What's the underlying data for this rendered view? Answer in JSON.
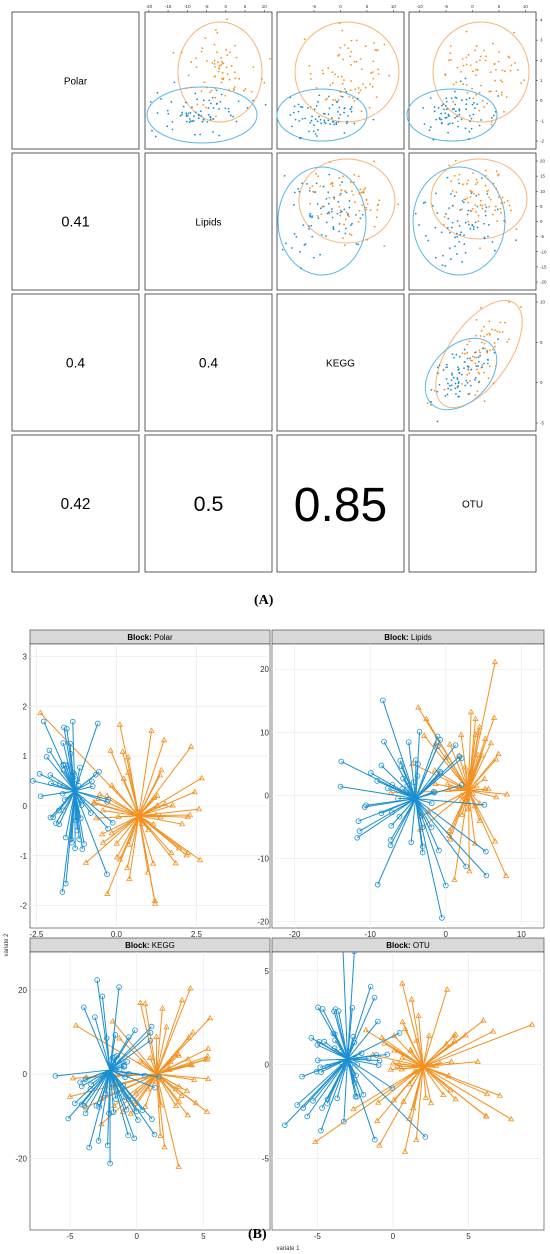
{
  "figure": {
    "label_a": "(A)",
    "label_b": "(B)"
  },
  "colors": {
    "group1": "#1a8fd1",
    "group2": "#f39121",
    "ellipse1": "#59b6e6",
    "ellipse2": "#f6b577",
    "strip_fill": "#d9d9d9",
    "grid": "#ebebeb"
  },
  "chart_data": [
    {
      "type": "scatter",
      "kind": "pairs-matrix",
      "blocks": [
        "Polar",
        "Lipids",
        "KEGG",
        "OTU"
      ],
      "correlations": [
        {
          "row": "Lipids",
          "col": "Polar",
          "value": "0.41"
        },
        {
          "row": "KEGG",
          "col": "Polar",
          "value": "0.4"
        },
        {
          "row": "KEGG",
          "col": "Lipids",
          "value": "0.4"
        },
        {
          "row": "OTU",
          "col": "Polar",
          "value": "0.42"
        },
        {
          "row": "OTU",
          "col": "Lipids",
          "value": "0.5"
        },
        {
          "row": "OTU",
          "col": "KEGG",
          "value": "0.85"
        }
      ],
      "top_axis_ticks": [
        [
          "-20",
          "-15",
          "-10",
          "-5",
          "0",
          "5",
          "10"
        ],
        [
          "-5",
          "0",
          "5",
          "10"
        ],
        [
          "-10",
          "-5",
          "0",
          "5",
          "10"
        ]
      ],
      "right_axis_ticks": [
        [
          "4",
          "3",
          "2",
          "1",
          "0",
          "-1",
          "-2"
        ],
        [
          "20",
          "15",
          "10",
          "5",
          "0",
          "-5",
          "-10",
          "-15",
          "-20"
        ],
        [
          "10",
          "5",
          "0",
          "-5"
        ]
      ],
      "ellipses": [
        {
          "pair": "Polar-Lipids",
          "group1": {
            "cx": -5,
            "cy": -0.5,
            "rx": 12,
            "ry": 1.8
          },
          "group2": {
            "cx": 2,
            "cy": 1.5,
            "rx": 8,
            "ry": 3
          }
        },
        {
          "pair": "Polar-KEGG",
          "group1": {
            "cx": -3,
            "cy": -0.5,
            "rx": 6,
            "ry": 1.6
          },
          "group2": {
            "cx": 1,
            "cy": 1.5,
            "rx": 7,
            "ry": 2.9
          }
        },
        {
          "pair": "Polar-OTU",
          "group1": {
            "cx": -3,
            "cy": -0.6,
            "rx": 9,
            "ry": 1.6
          },
          "group2": {
            "cx": 2,
            "cy": 1.4,
            "rx": 8,
            "ry": 2.8
          }
        }
      ]
    },
    {
      "type": "scatter",
      "kind": "arrow-plot",
      "xlabel": "variate 1",
      "ylabel": "variate 2",
      "strip_prefix": "Block:",
      "panels": [
        {
          "name": "Polar",
          "xlim": [
            -2.7,
            4.8
          ],
          "ylim": [
            -2.45,
            3.25
          ],
          "xticks": [
            -2.5,
            0.0,
            2.5
          ],
          "xtick_labels": [
            "-2.5",
            "0.0",
            "2.5"
          ],
          "yticks": [
            -2,
            -1,
            0,
            1,
            2,
            3
          ],
          "ytick_labels": [
            "-2",
            "-1",
            "0",
            "1",
            "2",
            "3"
          ],
          "centroid1": [
            -1.3,
            0.3
          ],
          "centroid2": [
            0.7,
            -0.2
          ],
          "spread1": [
            0.6,
            0.7
          ],
          "spread2": [
            1.1,
            0.9
          ]
        },
        {
          "name": "Lipids",
          "xlim": [
            -23,
            13
          ],
          "ylim": [
            -21,
            24
          ],
          "xticks": [
            -20,
            -10,
            0,
            10
          ],
          "xtick_labels": [
            "-20",
            "-10",
            "0",
            "10"
          ],
          "yticks": [
            -20,
            -10,
            0,
            10,
            20
          ],
          "ytick_labels": [
            "-20",
            "-10",
            "0",
            "10",
            "20"
          ],
          "centroid1": [
            -4,
            -0.5
          ],
          "centroid2": [
            3,
            0.8
          ],
          "spread1": [
            4.5,
            6.5
          ],
          "spread2": [
            3.8,
            6.5
          ]
        },
        {
          "name": "KEGG",
          "xlim": [
            -8,
            10
          ],
          "ylim": [
            -37,
            29
          ],
          "xticks": [
            -5,
            0,
            5
          ],
          "xtick_labels": [
            "-5",
            "0",
            "5"
          ],
          "yticks": [
            -20,
            0,
            20
          ],
          "ytick_labels": [
            "-20",
            "0",
            "20"
          ],
          "centroid1": [
            -2,
            1
          ],
          "centroid2": [
            1.5,
            0
          ],
          "spread1": [
            2,
            9
          ],
          "spread2": [
            2.8,
            9
          ]
        },
        {
          "name": "OTU",
          "xlim": [
            -8,
            10
          ],
          "ylim": [
            -8.8,
            6
          ],
          "xticks": [
            -5,
            0,
            5
          ],
          "xtick_labels": [
            "-5",
            "0",
            "5"
          ],
          "yticks": [
            -5,
            0,
            5
          ],
          "ytick_labels": [
            "-5",
            "0",
            "5"
          ],
          "centroid1": [
            -3,
            0.3
          ],
          "centroid2": [
            2,
            -0.1
          ],
          "spread1": [
            2,
            2
          ],
          "spread2": [
            2.7,
            2
          ]
        }
      ]
    }
  ]
}
